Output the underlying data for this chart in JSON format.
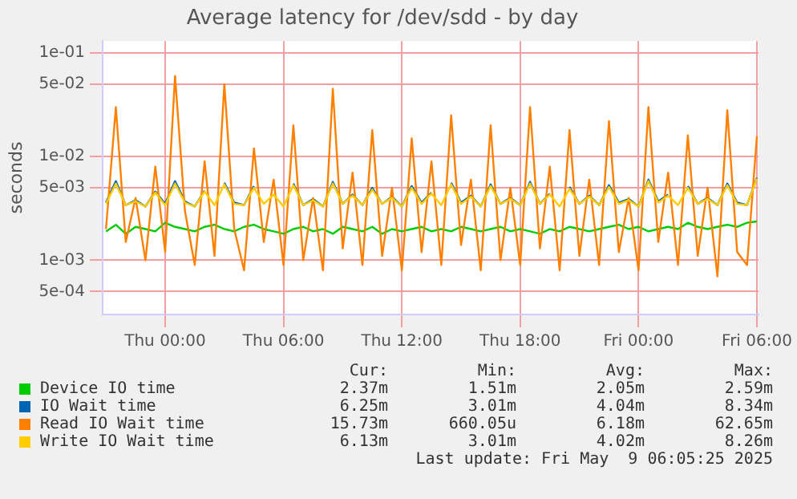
{
  "chart_data": {
    "type": "line",
    "title": "Average latency for /dev/sdd - by day",
    "ylabel": "seconds",
    "log": "y",
    "grid": true,
    "legend": "bottom",
    "marker": "none",
    "x": [
      "2025-05-07T21:00",
      "2025-05-07T21:30",
      "2025-05-07T22:00",
      "2025-05-07T22:30",
      "2025-05-07T23:00",
      "2025-05-07T23:30",
      "2025-05-08T00:00",
      "2025-05-08T00:30",
      "2025-05-08T01:00",
      "2025-05-08T01:30",
      "2025-05-08T02:00",
      "2025-05-08T02:30",
      "2025-05-08T03:00",
      "2025-05-08T03:30",
      "2025-05-08T04:00",
      "2025-05-08T04:30",
      "2025-05-08T05:00",
      "2025-05-08T05:30",
      "2025-05-08T06:00",
      "2025-05-08T06:30",
      "2025-05-08T07:00",
      "2025-05-08T07:30",
      "2025-05-08T08:00",
      "2025-05-08T08:30",
      "2025-05-08T09:00",
      "2025-05-08T09:30",
      "2025-05-08T10:00",
      "2025-05-08T10:30",
      "2025-05-08T11:00",
      "2025-05-08T11:30",
      "2025-05-08T12:00",
      "2025-05-08T12:30",
      "2025-05-08T13:00",
      "2025-05-08T13:30",
      "2025-05-08T14:00",
      "2025-05-08T14:30",
      "2025-05-08T15:00",
      "2025-05-08T15:30",
      "2025-05-08T16:00",
      "2025-05-08T16:30",
      "2025-05-08T17:00",
      "2025-05-08T17:30",
      "2025-05-08T18:00",
      "2025-05-08T18:30",
      "2025-05-08T19:00",
      "2025-05-08T19:30",
      "2025-05-08T20:00",
      "2025-05-08T20:30",
      "2025-05-08T21:00",
      "2025-05-08T21:30",
      "2025-05-08T22:00",
      "2025-05-08T22:30",
      "2025-05-08T23:00",
      "2025-05-08T23:30",
      "2025-05-09T00:00",
      "2025-05-09T00:30",
      "2025-05-09T01:00",
      "2025-05-09T01:30",
      "2025-05-09T02:00",
      "2025-05-09T02:30",
      "2025-05-09T03:00",
      "2025-05-09T03:30",
      "2025-05-09T04:00",
      "2025-05-09T04:30",
      "2025-05-09T05:00",
      "2025-05-09T05:30",
      "2025-05-09T06:00"
    ],
    "xlim": [
      "2025-05-07T20:50",
      "2025-05-09T06:05"
    ],
    "xticks": [
      {
        "value": "2025-05-08T00:00",
        "label": "Thu 00:00"
      },
      {
        "value": "2025-05-08T06:00",
        "label": "Thu 06:00"
      },
      {
        "value": "2025-05-08T12:00",
        "label": "Thu 12:00"
      },
      {
        "value": "2025-05-08T18:00",
        "label": "Thu 18:00"
      },
      {
        "value": "2025-05-09T00:00",
        "label": "Fri 00:00"
      },
      {
        "value": "2025-05-09T06:00",
        "label": "Fri 06:00"
      }
    ],
    "ylim": [
      0.00032,
      0.13
    ],
    "yticks": [
      {
        "value": 0.0005,
        "label": "5e-04"
      },
      {
        "value": 0.001,
        "label": "1e-03"
      },
      {
        "value": 0.005,
        "label": "5e-03"
      },
      {
        "value": 0.01,
        "label": "1e-02"
      },
      {
        "value": 0.05,
        "label": "5e-02"
      },
      {
        "value": 0.1,
        "label": "1e-01"
      }
    ],
    "series": [
      {
        "name": "Device IO time",
        "color": "#00cc00",
        "values": [
          0.0019,
          0.0022,
          0.0018,
          0.0021,
          0.002,
          0.0019,
          0.0023,
          0.0021,
          0.002,
          0.0019,
          0.0021,
          0.0022,
          0.002,
          0.0019,
          0.0021,
          0.0022,
          0.002,
          0.0019,
          0.0018,
          0.002,
          0.0021,
          0.0019,
          0.002,
          0.0018,
          0.0021,
          0.002,
          0.0019,
          0.0021,
          0.0018,
          0.002,
          0.0019,
          0.002,
          0.0021,
          0.0019,
          0.002,
          0.0019,
          0.0021,
          0.002,
          0.0019,
          0.002,
          0.0021,
          0.0019,
          0.002,
          0.0019,
          0.0018,
          0.002,
          0.0019,
          0.0021,
          0.002,
          0.0019,
          0.002,
          0.0021,
          0.0022,
          0.002,
          0.0021,
          0.0019,
          0.002,
          0.0021,
          0.002,
          0.0023,
          0.0021,
          0.002,
          0.0021,
          0.0022,
          0.0021,
          0.0023,
          0.00237
        ]
      },
      {
        "name": "IO Wait time",
        "color": "#0066b3",
        "values": [
          0.0036,
          0.0058,
          0.0034,
          0.0038,
          0.0033,
          0.0046,
          0.0035,
          0.0058,
          0.0037,
          0.0033,
          0.0047,
          null,
          0.0056,
          0.0036,
          0.0034,
          0.0052,
          null,
          null,
          null,
          0.0055,
          0.0034,
          0.0039,
          0.0033,
          0.0057,
          0.0035,
          0.0043,
          0.0034,
          0.005,
          0.0035,
          0.0041,
          0.0033,
          0.0052,
          0.0036,
          0.0045,
          null,
          0.0056,
          0.0036,
          0.0042,
          0.0033,
          0.0054,
          0.0035,
          0.004,
          0.0034,
          0.0057,
          0.0035,
          0.0044,
          null,
          0.0051,
          0.0035,
          0.0042,
          0.0034,
          0.0053,
          0.0036,
          0.0039,
          0.0033,
          0.006,
          0.0037,
          0.0043,
          null,
          0.0052,
          0.0035,
          0.004,
          0.0034,
          0.0055,
          0.0036,
          0.0034,
          0.00625
        ]
      },
      {
        "name": "Read IO Wait time",
        "color": "#ff8000",
        "values": [
          0.002,
          0.03,
          0.0015,
          0.004,
          0.001,
          0.008,
          0.0012,
          0.06,
          0.003,
          0.0009,
          0.009,
          0.0011,
          0.05,
          0.002,
          0.0008,
          0.012,
          0.0015,
          0.006,
          0.0009,
          0.02,
          0.001,
          0.004,
          0.0008,
          0.045,
          0.0013,
          0.007,
          0.0009,
          0.018,
          0.0011,
          0.005,
          0.0008,
          0.015,
          0.0012,
          0.009,
          0.0009,
          0.025,
          0.0014,
          0.006,
          0.0008,
          0.02,
          0.001,
          0.005,
          0.0009,
          0.03,
          0.0013,
          0.008,
          0.0008,
          0.018,
          0.0011,
          0.006,
          0.0009,
          0.022,
          0.0012,
          0.004,
          0.0008,
          0.03,
          0.0015,
          0.007,
          0.0009,
          0.016,
          0.0011,
          0.005,
          0.0007,
          0.028,
          0.0012,
          0.0009,
          0.0157
        ]
      },
      {
        "name": "Write IO Wait time",
        "color": "#ffcc00",
        "values": [
          0.0035,
          0.0055,
          0.0034,
          0.0037,
          0.0033,
          0.0045,
          0.0034,
          0.0055,
          0.0036,
          0.0033,
          0.0046,
          0.0034,
          0.0054,
          0.0035,
          0.0034,
          0.005,
          0.0035,
          0.0043,
          0.0033,
          0.0053,
          0.0034,
          0.0038,
          0.0033,
          0.0055,
          0.0035,
          0.0042,
          0.0034,
          0.0048,
          0.0035,
          0.004,
          0.0033,
          0.005,
          0.0035,
          0.0044,
          0.0034,
          0.0054,
          0.0035,
          0.0041,
          0.0033,
          0.0052,
          0.0035,
          0.0039,
          0.0034,
          0.0055,
          0.0035,
          0.0043,
          0.0033,
          0.0049,
          0.0035,
          0.0041,
          0.0034,
          0.0051,
          0.0035,
          0.0038,
          0.0033,
          0.0058,
          0.0036,
          0.0042,
          0.0034,
          0.005,
          0.0035,
          0.0039,
          0.0034,
          0.0053,
          0.0035,
          0.0034,
          0.00613
        ]
      }
    ],
    "annotations": [
      "Cur:",
      "Min:",
      "Avg:",
      "Max:",
      "2.37m",
      "1.51m",
      "2.05m",
      "2.59m",
      "6.25m",
      "3.01m",
      "4.04m",
      "8.34m",
      "15.73m",
      "660.05u",
      "6.18m",
      "62.65m",
      "6.13m",
      "3.01m",
      "4.02m",
      "8.26m",
      "Last update: Fri May  9 06:05:25 2025"
    ]
  }
}
